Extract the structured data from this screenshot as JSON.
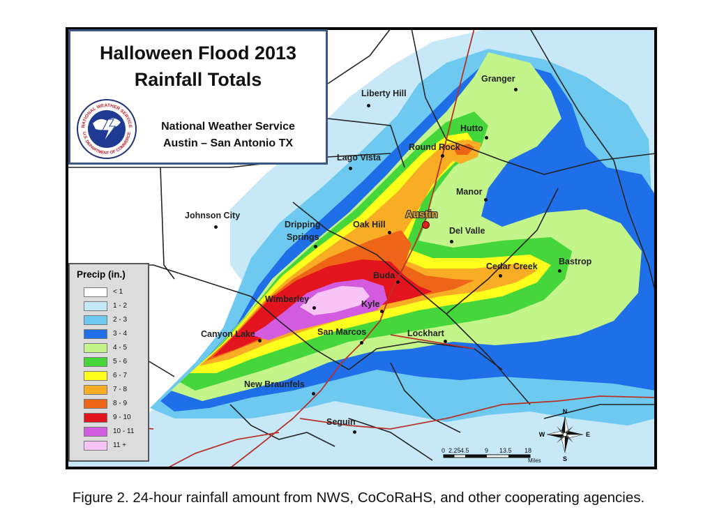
{
  "title": {
    "line1": "Halloween Flood 2013",
    "line2": "Rainfall Totals",
    "office_line1": "National Weather Service",
    "office_line2": "Austin – San Antonio TX",
    "logo_text": "NATIONAL WEATHER SERVICE",
    "logo_text_bottom": "U.S. DEPARTMENT OF COMMERCE"
  },
  "legend": {
    "title": "Precip (in.)",
    "items": [
      {
        "label": "< 1",
        "color": "#ffffff"
      },
      {
        "label": "1 - 2",
        "color": "#c6e8f7"
      },
      {
        "label": "2 - 3",
        "color": "#6ec9f0"
      },
      {
        "label": "3 - 4",
        "color": "#1f6fe8"
      },
      {
        "label": "4 - 5",
        "color": "#c3f58a"
      },
      {
        "label": "5 - 6",
        "color": "#44d63a"
      },
      {
        "label": "6 - 7",
        "color": "#ffff1e"
      },
      {
        "label": "7 - 8",
        "color": "#f9ad25"
      },
      {
        "label": "8 - 9",
        "color": "#ee6517"
      },
      {
        "label": "9 - 10",
        "color": "#e2141e"
      },
      {
        "label": "10 - 11",
        "color": "#d25be0"
      },
      {
        "label": "11 +",
        "color": "#f7c4f5"
      }
    ]
  },
  "cities": {
    "liberty_hill": "Liberty Hill",
    "granger": "Granger",
    "hutto": "Hutto",
    "round_rock": "Round Rock",
    "lago_vista": "Lago Vista",
    "manor": "Manor",
    "austin": "Austin",
    "johnson_city": "Johnson City",
    "dripping_springs_1": "Dripping",
    "dripping_springs_2": "Springs",
    "oak_hill": "Oak Hill",
    "del_valle": "Del Valle",
    "bastrop": "Bastrop",
    "cedar_creek": "Cedar Creek",
    "buda": "Buda",
    "wimberley": "Wimberley",
    "kyle": "Kyle",
    "canyon_lake": "Canyon Lake",
    "san_marcos": "San Marcos",
    "lockhart": "Lockhart",
    "new_braunfels": "New Braunfels",
    "seguin": "Seguin"
  },
  "scale_bar": {
    "ticks": [
      "0",
      "2.25",
      "4.5",
      "9",
      "13.5",
      "18"
    ],
    "unit": "Miles"
  },
  "compass": {
    "n": "N",
    "s": "S",
    "e": "E",
    "w": "W"
  },
  "caption": "Figure 2.  24-hour rainfall amount from NWS, CoCoRaHS, and other cooperating agencies."
}
